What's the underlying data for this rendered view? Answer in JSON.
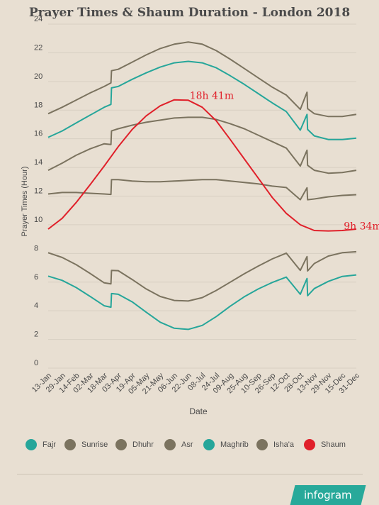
{
  "chart_data": {
    "type": "line",
    "title": "Prayer Times & Shaum Duration - London 2018",
    "xlabel": "Date",
    "ylabel": "Prayer Times (Hour)",
    "ylim": [
      0,
      24
    ],
    "yticks": [
      0,
      2,
      4,
      6,
      8,
      10,
      12,
      14,
      16,
      18,
      20,
      22,
      24
    ],
    "categories": [
      "13-Jan",
      "29-Jan",
      "14-Feb",
      "02-Mar",
      "18-Mar",
      "03-Apr",
      "19-Apr",
      "05-May",
      "21-May",
      "06-Jun",
      "22-Jun",
      "08-Jul",
      "24-Jul",
      "09-Aug",
      "25-Aug",
      "10-Sep",
      "26-Sep",
      "12-Oct",
      "28-Oct",
      "13-Nov",
      "29-Nov",
      "15-Dec",
      "31-Dec"
    ],
    "grid": "horizontal",
    "legend_position": "bottom",
    "series": [
      {
        "name": "Fajr",
        "color": "#26a69a",
        "values": [
          6.42,
          6.12,
          5.62,
          5.0,
          4.35,
          5.15,
          4.62,
          3.9,
          3.2,
          2.78,
          2.7,
          2.98,
          3.6,
          4.32,
          4.98,
          5.52,
          5.98,
          6.35,
          5.15,
          5.55,
          6.05,
          6.4,
          6.5
        ],
        "jumps": [
          [
            4.5,
            4.25,
            5.2
          ],
          [
            18.5,
            6.25,
            5.05
          ]
        ]
      },
      {
        "name": "Sunrise",
        "color": "#7b735f",
        "values": [
          8.05,
          7.72,
          7.22,
          6.6,
          5.95,
          6.8,
          6.18,
          5.52,
          5.0,
          4.72,
          4.68,
          4.92,
          5.42,
          6.0,
          6.58,
          7.12,
          7.62,
          8.02,
          6.82,
          7.3,
          7.82,
          8.05,
          8.12
        ],
        "jumps": [
          [
            4.5,
            5.88,
            6.82
          ],
          [
            18.5,
            7.78,
            6.78
          ]
        ]
      },
      {
        "name": "Dhuhr",
        "color": "#7b735f",
        "values": [
          12.15,
          12.25,
          12.25,
          12.2,
          12.15,
          13.15,
          13.05,
          13.0,
          13.0,
          13.05,
          13.1,
          13.15,
          13.15,
          13.05,
          12.95,
          12.85,
          12.7,
          12.6,
          11.75,
          11.8,
          11.95,
          12.05,
          12.1
        ],
        "jumps": [
          [
            4.5,
            12.12,
            13.15
          ],
          [
            18.5,
            12.58,
            11.75
          ]
        ]
      },
      {
        "name": "Asr",
        "color": "#7b735f",
        "values": [
          13.8,
          14.3,
          14.85,
          15.3,
          15.65,
          16.7,
          16.95,
          17.15,
          17.3,
          17.45,
          17.5,
          17.5,
          17.35,
          17.05,
          16.7,
          16.25,
          15.8,
          15.35,
          14.1,
          13.8,
          13.6,
          13.65,
          13.8
        ],
        "jumps": [
          [
            4.5,
            15.6,
            16.55
          ],
          [
            18.5,
            15.2,
            14.15
          ]
        ]
      },
      {
        "name": "Maghrib",
        "color": "#26a69a",
        "values": [
          16.1,
          16.55,
          17.1,
          17.65,
          18.2,
          19.65,
          20.15,
          20.6,
          21.0,
          21.3,
          21.4,
          21.3,
          20.95,
          20.4,
          19.8,
          19.15,
          18.5,
          17.9,
          16.6,
          16.2,
          15.95,
          15.95,
          16.05
        ],
        "jumps": [
          [
            4.5,
            18.4,
            19.55
          ],
          [
            18.5,
            17.7,
            16.65
          ]
        ]
      },
      {
        "name": "Isha'a",
        "color": "#7b735f",
        "values": [
          17.75,
          18.2,
          18.7,
          19.2,
          19.65,
          20.85,
          21.35,
          21.85,
          22.3,
          22.6,
          22.75,
          22.6,
          22.15,
          21.55,
          20.9,
          20.25,
          19.6,
          19.05,
          18.05,
          17.75,
          17.55,
          17.55,
          17.7
        ],
        "jumps": [
          [
            4.5,
            19.9,
            20.75
          ],
          [
            18.5,
            19.25,
            18.1
          ]
        ]
      },
      {
        "name": "Shaum",
        "color": "#e0202a",
        "values": [
          9.7,
          10.45,
          11.55,
          12.8,
          14.1,
          15.45,
          16.65,
          17.6,
          18.3,
          18.72,
          18.69,
          18.2,
          17.25,
          15.95,
          14.6,
          13.25,
          11.9,
          10.8,
          10.0,
          9.6,
          9.57,
          9.6,
          9.7
        ]
      }
    ],
    "annotations": [
      {
        "text": "18h 41m",
        "x": "22-Jun",
        "y": 18.69
      },
      {
        "text": "9h 34m",
        "x": "15-Dec",
        "y": 9.57
      }
    ]
  },
  "footer": {
    "brand": "infogram"
  }
}
